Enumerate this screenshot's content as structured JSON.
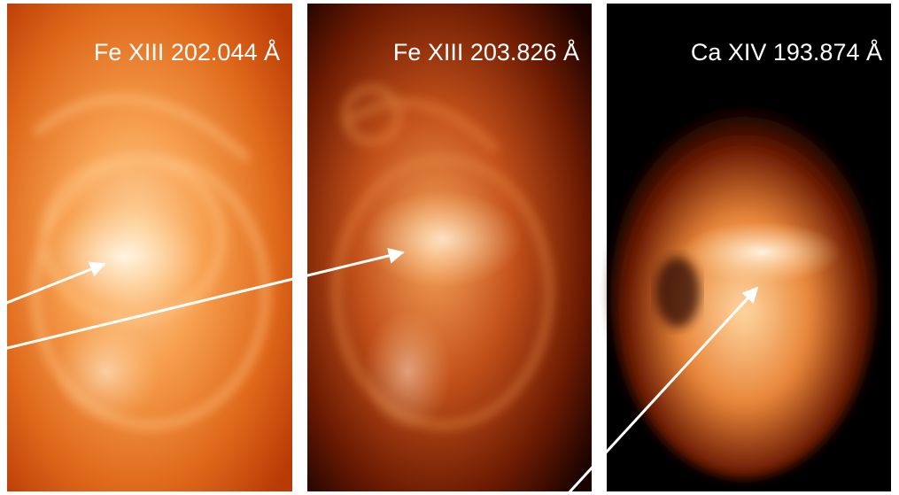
{
  "panels": [
    {
      "label": "Fe XIII 202.044 Å"
    },
    {
      "label": "Fe XIII 203.826 Å"
    },
    {
      "label": "Ca XIV 193.874 Å"
    }
  ]
}
